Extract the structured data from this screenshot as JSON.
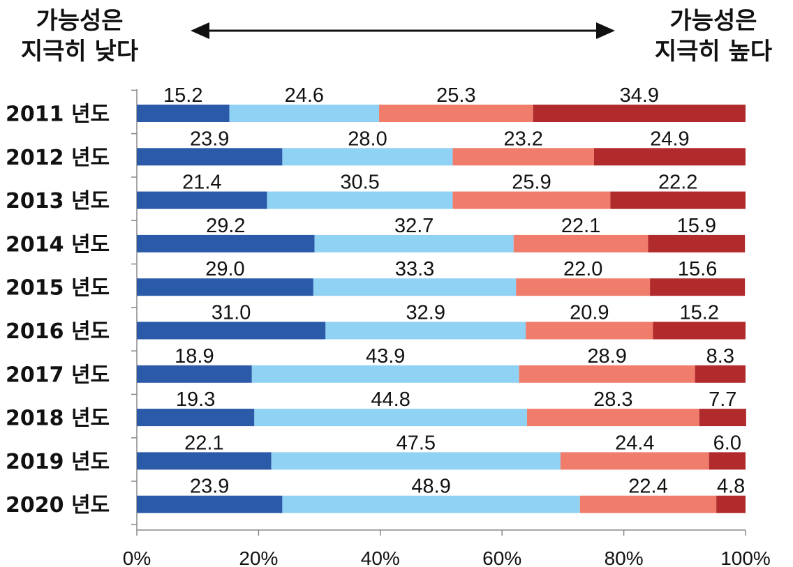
{
  "header": {
    "left_line1": "가능성은",
    "left_line2": "지극히 낮다",
    "right_line1": "가능성은",
    "right_line2": "지극히 높다"
  },
  "chart_data": {
    "type": "bar",
    "orientation": "horizontal",
    "stacked": "100%",
    "categories": [
      "2011 년도",
      "2012 년도",
      "2013 년도",
      "2014 년도",
      "2015 년도",
      "2016 년도",
      "2017 년도",
      "2018 년도",
      "2019 년도",
      "2020 년도"
    ],
    "series": [
      {
        "values": [
          15.2,
          23.9,
          21.4,
          29.2,
          29.0,
          31.0,
          18.9,
          19.3,
          22.1,
          23.9
        ],
        "color": "#2b5aa8"
      },
      {
        "values": [
          24.6,
          28.0,
          30.5,
          32.7,
          33.3,
          32.9,
          43.9,
          44.8,
          47.5,
          48.9
        ],
        "color": "#8fd2f3"
      },
      {
        "values": [
          25.3,
          23.2,
          25.9,
          22.1,
          22.0,
          20.9,
          28.9,
          28.3,
          24.4,
          22.4
        ],
        "color": "#f07c6b"
      },
      {
        "values": [
          34.9,
          24.9,
          22.2,
          15.9,
          15.6,
          15.2,
          8.3,
          7.7,
          6.0,
          4.8
        ],
        "color": "#b12a2c"
      }
    ],
    "labels": [
      [
        "15.2",
        "24.6",
        "25.3",
        "34.9"
      ],
      [
        "23.9",
        "28.0",
        "23.2",
        "24.9"
      ],
      [
        "21.4",
        "30.5",
        "25.9",
        "22.2"
      ],
      [
        "29.2",
        "32.7",
        "22.1",
        "15.9"
      ],
      [
        "29.0",
        "33.3",
        "22.0",
        "15.6"
      ],
      [
        "31.0",
        "32.9",
        "20.9",
        "15.2"
      ],
      [
        "18.9",
        "43.9",
        "28.9",
        "8.3"
      ],
      [
        "19.3",
        "44.8",
        "28.3",
        "7.7"
      ],
      [
        "22.1",
        "47.5",
        "24.4",
        "6.0"
      ],
      [
        "23.9",
        "48.9",
        "22.4",
        "4.8"
      ]
    ],
    "x_ticks": [
      "0%",
      "20%",
      "40%",
      "60%",
      "80%",
      "100%"
    ],
    "xlim": [
      0,
      100
    ],
    "grid": false,
    "legend": "none"
  }
}
